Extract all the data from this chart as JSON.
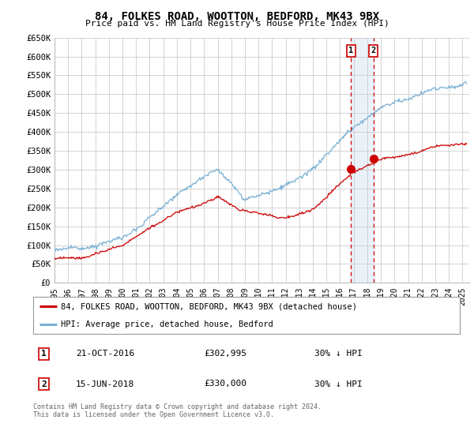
{
  "title": "84, FOLKES ROAD, WOOTTON, BEDFORD, MK43 9BX",
  "subtitle": "Price paid vs. HM Land Registry's House Price Index (HPI)",
  "ylim": [
    0,
    650000
  ],
  "yticks": [
    0,
    50000,
    100000,
    150000,
    200000,
    250000,
    300000,
    350000,
    400000,
    450000,
    500000,
    550000,
    600000,
    650000
  ],
  "ytick_labels": [
    "£0",
    "£50K",
    "£100K",
    "£150K",
    "£200K",
    "£250K",
    "£300K",
    "£350K",
    "£400K",
    "£450K",
    "£500K",
    "£550K",
    "£600K",
    "£650K"
  ],
  "xlim_start": 1995.0,
  "xlim_end": 2025.5,
  "legend_line1": "84, FOLKES ROAD, WOOTTON, BEDFORD, MK43 9BX (detached house)",
  "legend_line2": "HPI: Average price, detached house, Bedford",
  "transaction1_label": "1",
  "transaction1_date": "21-OCT-2016",
  "transaction1_price": "£302,995",
  "transaction1_hpi": "30% ↓ HPI",
  "transaction2_label": "2",
  "transaction2_date": "15-JUN-2018",
  "transaction2_price": "£330,000",
  "transaction2_hpi": "30% ↓ HPI",
  "vline1_x": 2016.8,
  "vline2_x": 2018.45,
  "marker1_y": 302995,
  "marker2_y": 330000,
  "copyright_text": "Contains HM Land Registry data © Crown copyright and database right 2024.\nThis data is licensed under the Open Government Licence v3.0.",
  "red_color": "#cc0000",
  "blue_color": "#7ab0d4",
  "background_color": "#ffffff",
  "grid_color": "#cccccc",
  "shaded_color": "#dde8f5"
}
